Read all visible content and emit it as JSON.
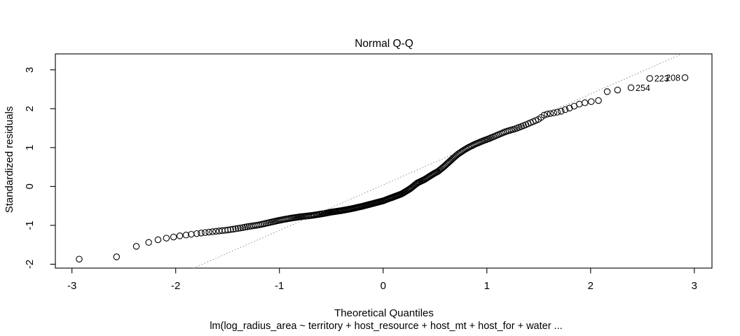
{
  "chart_data": {
    "type": "scatter",
    "title": "Normal Q-Q",
    "xlabel": "Theoretical Quantiles",
    "ylabel": "Standardized residuals",
    "subtitle": "lm(log_radius_area ~ territory + host_resource + host_mt + host_for + water ...",
    "x_ticks": [
      -3,
      -2,
      -1,
      0,
      1,
      2,
      3
    ],
    "y_ticks": [
      -2,
      -1,
      0,
      1,
      2,
      3
    ],
    "xlim": [
      -3.16,
      3.17
    ],
    "ylim": [
      -2.1,
      3.41
    ],
    "grid": false,
    "legend": false,
    "marker": "open-circle",
    "n_points": 290,
    "reference_line": {
      "slope": 1.17,
      "intercept": 0.04,
      "style": "dotted",
      "color": "#808080"
    },
    "tail_points": [
      {
        "x": -2.93,
        "y": -1.87
      },
      {
        "x": -2.57,
        "y": -1.81
      },
      {
        "x": -2.38,
        "y": -1.54
      },
      {
        "x": -2.26,
        "y": -1.44
      },
      {
        "x": -2.17,
        "y": -1.37
      },
      {
        "x": -2.09,
        "y": -1.33
      },
      {
        "x": -2.02,
        "y": -1.3
      },
      {
        "x": -1.96,
        "y": -1.27
      },
      {
        "x": -1.9,
        "y": -1.25
      },
      {
        "x": -1.85,
        "y": -1.23
      },
      {
        "x": 2.16,
        "y": 2.44
      },
      {
        "x": 2.26,
        "y": 2.48
      },
      {
        "x": 2.39,
        "y": 2.54,
        "label": "254",
        "label_side": "right"
      },
      {
        "x": 2.57,
        "y": 2.78,
        "label": "223",
        "label_side": "right"
      },
      {
        "x": 2.91,
        "y": 2.8,
        "label": "208",
        "label_side": "left"
      }
    ],
    "chain_q_range": [
      -1.81,
      2.09
    ],
    "curve_anchors": [
      [
        -1.82,
        -1.22
      ],
      [
        -1.7,
        -1.18
      ],
      [
        -1.6,
        -1.15
      ],
      [
        -1.5,
        -1.12
      ],
      [
        -1.4,
        -1.08
      ],
      [
        -1.3,
        -1.03
      ],
      [
        -1.2,
        -0.99
      ],
      [
        -1.1,
        -0.93
      ],
      [
        -1.0,
        -0.87
      ],
      [
        -0.9,
        -0.82
      ],
      [
        -0.8,
        -0.78
      ],
      [
        -0.7,
        -0.75
      ],
      [
        -0.6,
        -0.71
      ],
      [
        -0.5,
        -0.66
      ],
      [
        -0.4,
        -0.62
      ],
      [
        -0.3,
        -0.57
      ],
      [
        -0.2,
        -0.51
      ],
      [
        -0.1,
        -0.44
      ],
      [
        0.0,
        -0.37
      ],
      [
        0.1,
        -0.27
      ],
      [
        0.18,
        -0.19
      ],
      [
        0.26,
        -0.06
      ],
      [
        0.33,
        0.09
      ],
      [
        0.4,
        0.18
      ],
      [
        0.47,
        0.3
      ],
      [
        0.53,
        0.39
      ],
      [
        0.59,
        0.52
      ],
      [
        0.64,
        0.64
      ],
      [
        0.68,
        0.74
      ],
      [
        0.72,
        0.83
      ],
      [
        0.77,
        0.92
      ],
      [
        0.82,
        1.0
      ],
      [
        0.88,
        1.08
      ],
      [
        0.95,
        1.16
      ],
      [
        1.02,
        1.23
      ],
      [
        1.1,
        1.32
      ],
      [
        1.18,
        1.41
      ],
      [
        1.27,
        1.48
      ],
      [
        1.36,
        1.57
      ],
      [
        1.44,
        1.66
      ],
      [
        1.5,
        1.73
      ],
      [
        1.56,
        1.85
      ],
      [
        1.62,
        1.88
      ],
      [
        1.7,
        1.92
      ],
      [
        1.76,
        1.98
      ],
      [
        1.82,
        2.04
      ],
      [
        1.88,
        2.11
      ],
      [
        1.94,
        2.15
      ],
      [
        2.0,
        2.18
      ],
      [
        2.1,
        2.22
      ]
    ],
    "colors": {
      "points": "#000000",
      "axis": "#000000",
      "text": "#000000",
      "reference_line": "#808080",
      "background": "#ffffff"
    }
  }
}
